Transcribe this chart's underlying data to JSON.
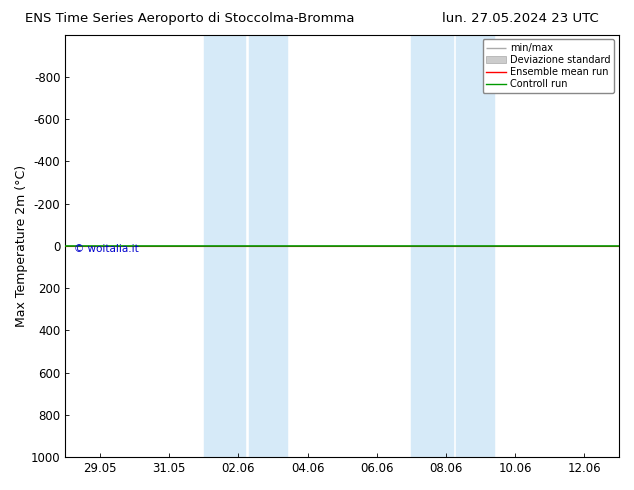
{
  "title_left": "ENS Time Series Aeroporto di Stoccolma-Bromma",
  "title_right": "lun. 27.05.2024 23 UTC",
  "ylabel": "Max Temperature 2m (°C)",
  "ylim_bottom": -1000,
  "ylim_top": 1000,
  "yticks": [
    -800,
    -600,
    -400,
    -200,
    0,
    200,
    400,
    600,
    800,
    1000
  ],
  "xtick_labels": [
    "29.05",
    "31.05",
    "02.06",
    "04.06",
    "06.06",
    "08.06",
    "10.06",
    "12.06"
  ],
  "xtick_positions": [
    1,
    3,
    5,
    7,
    9,
    11,
    13,
    15
  ],
  "x_min": 0,
  "x_max": 16,
  "band1_x1": 4.0,
  "band1_x2": 5.2,
  "band1b_x1": 5.3,
  "band1b_x2": 6.4,
  "band2_x1": 10.0,
  "band2_x2": 11.2,
  "band2b_x1": 11.3,
  "band2b_x2": 12.4,
  "control_run_y": 0,
  "ensemble_mean_y": 0,
  "background_color": "#ffffff",
  "band_color": "#d6eaf8",
  "control_run_color": "#009900",
  "ensemble_mean_color": "#ff0000",
  "minmax_color": "#aaaaaa",
  "stddev_color": "#cccccc",
  "watermark": "© woitalia.it",
  "watermark_color": "#0000cc",
  "legend_labels": [
    "min/max",
    "Deviazione standard",
    "Ensemble mean run",
    "Controll run"
  ],
  "legend_colors": [
    "#aaaaaa",
    "#cccccc",
    "#ff0000",
    "#009900"
  ]
}
